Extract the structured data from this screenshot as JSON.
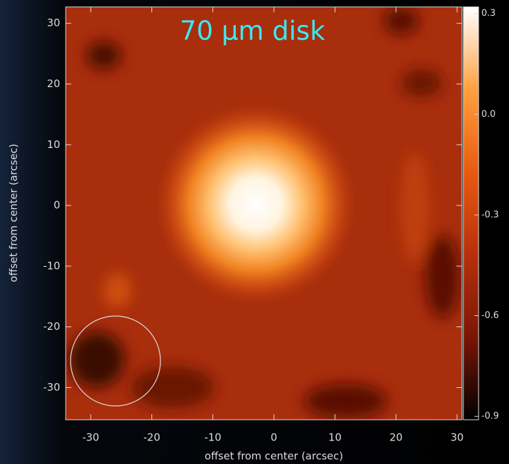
{
  "chart_data": {
    "type": "image",
    "title": "70 μm disk",
    "xlabel": "offset from center (arcsec)",
    "ylabel": "offset from center (arcsec)",
    "xlim": [
      -34.1,
      30.8
    ],
    "xticks": [
      -30,
      -20,
      -10,
      0,
      10,
      20,
      30
    ],
    "ylim": [
      -35.3,
      32.7
    ],
    "yticks": [
      -30,
      -20,
      -10,
      0,
      10,
      20,
      30
    ],
    "clim": [
      -0.91,
      0.32
    ],
    "cticks": [
      0.3,
      {
        "value": 0,
        "label": "0.0"
      },
      -0.3,
      -0.6,
      -0.9
    ],
    "colormap": [
      "#000000",
      "#7a1606",
      "#b8300c",
      "#e85a10",
      "#ffa040",
      "#ffffff"
    ]
  }
}
